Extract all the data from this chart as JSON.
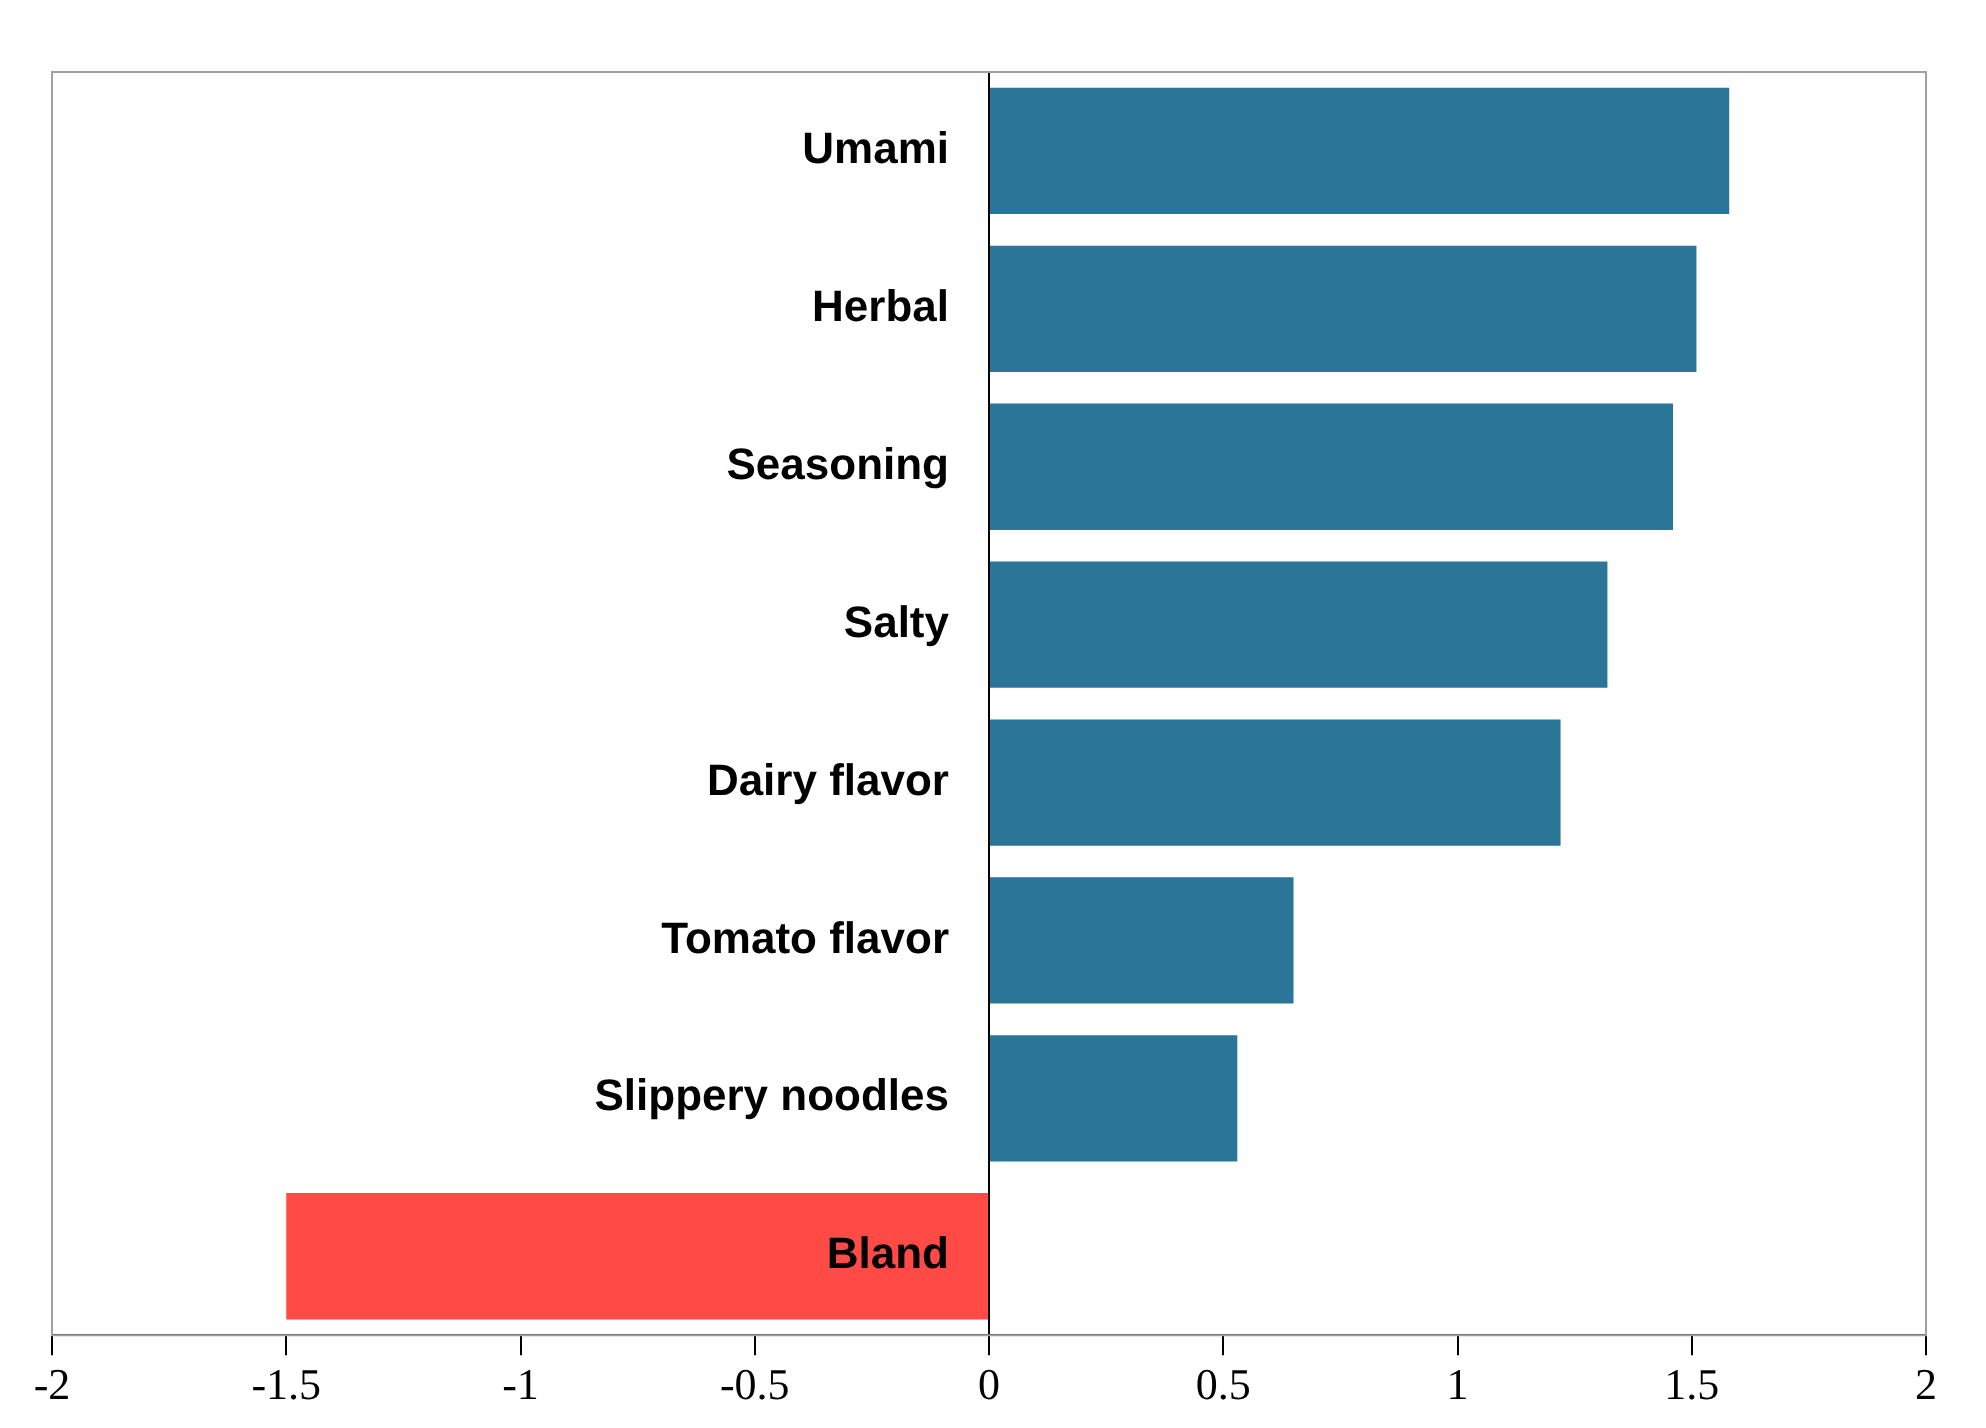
{
  "chart_data": {
    "type": "bar",
    "orientation": "horizontal",
    "categories": [
      "Umami",
      "Herbal",
      "Seasoning",
      "Salty",
      "Dairy flavor",
      "Tomato flavor",
      "Slippery noodles",
      "Bland"
    ],
    "values": [
      1.58,
      1.51,
      1.46,
      1.32,
      1.22,
      0.65,
      0.53,
      -1.5
    ],
    "colors": [
      "#2b7598",
      "#2b7598",
      "#2b7598",
      "#2b7598",
      "#2b7598",
      "#2b7598",
      "#2b7598",
      "#ff4a45"
    ],
    "xlim": [
      -2,
      2
    ],
    "xticks": [
      -2,
      -1.5,
      -1,
      -0.5,
      0,
      0.5,
      1,
      1.5,
      2
    ],
    "grid": false,
    "legend": false
  }
}
